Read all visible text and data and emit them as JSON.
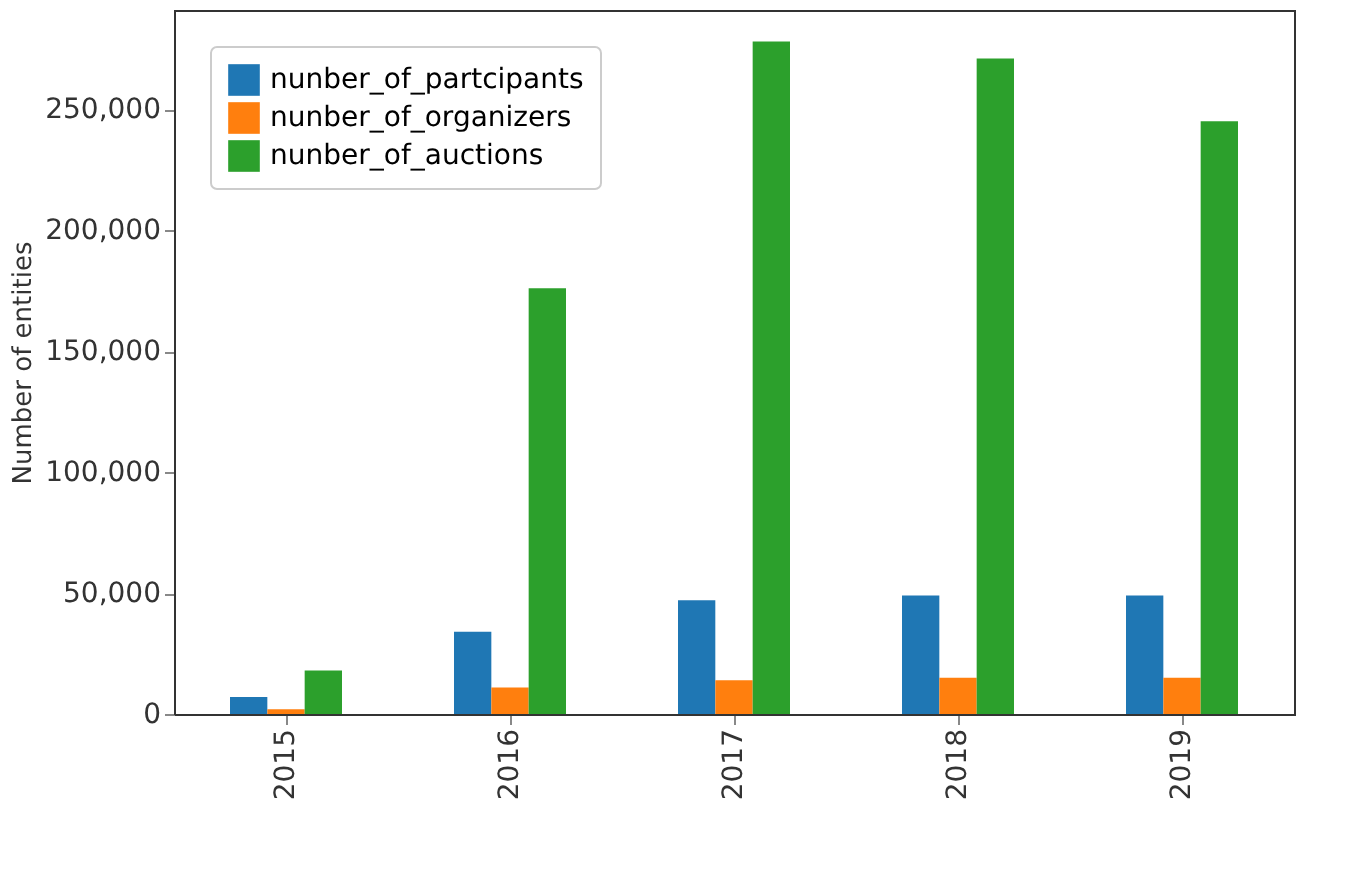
{
  "chart_data": {
    "type": "bar",
    "ylabel": "Number of entities",
    "categories": [
      "2015",
      "2016",
      "2017",
      "2018",
      "2019"
    ],
    "series": [
      {
        "name": "nunber_of_partcipants",
        "color": "#1f77b4",
        "values": [
          7000,
          34000,
          47000,
          49000,
          49000
        ]
      },
      {
        "name": "nunber_of_organizers",
        "color": "#ff7f0e",
        "values": [
          2000,
          11000,
          14000,
          15000,
          15000
        ]
      },
      {
        "name": "nunber_of_auctions",
        "color": "#2ca02c",
        "values": [
          18000,
          176000,
          278000,
          271000,
          245000
        ]
      }
    ],
    "ylim": [
      0,
      291000
    ],
    "yticks": [
      0,
      {
        "value": 50000,
        "label": "50,000"
      },
      {
        "value": 100000,
        "label": "100,000"
      },
      {
        "value": 150000,
        "label": "150,000"
      },
      {
        "value": 200000,
        "label": "200,000"
      },
      {
        "value": 250000,
        "label": "250,000"
      }
    ],
    "grid": false,
    "legend": "top left"
  }
}
